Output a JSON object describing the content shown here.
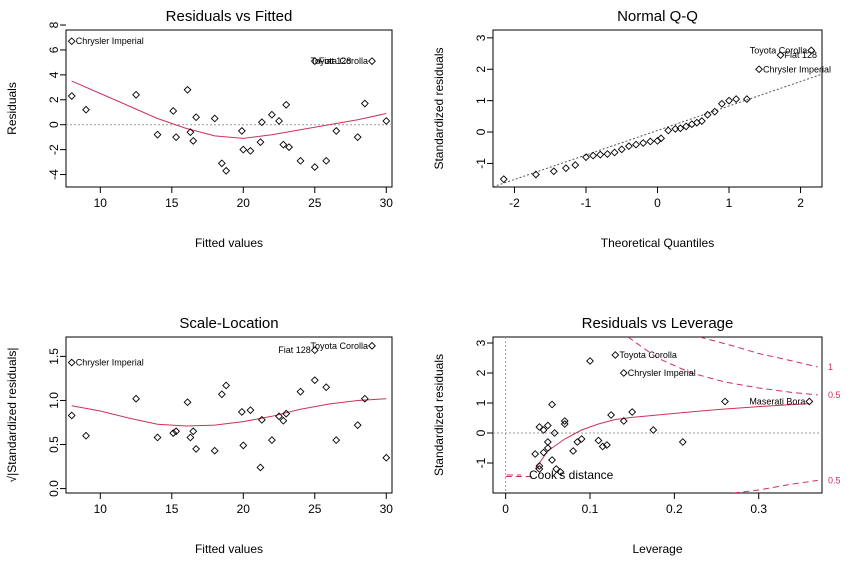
{
  "chart_data": [
    {
      "type": "scatter",
      "title": "Residuals vs Fitted",
      "xlabel": "Fitted values",
      "ylabel": "Residuals",
      "xlim": [
        7.6,
        30.4
      ],
      "ylim": [
        -5.0,
        7.6
      ],
      "xticks": [
        10,
        15,
        20,
        25,
        30
      ],
      "yticks": [
        -4,
        -2,
        0,
        2,
        4,
        6,
        8
      ],
      "reference_line": 0,
      "points": [
        [
          8,
          2.3
        ],
        [
          8,
          6.7
        ],
        [
          9,
          1.2
        ],
        [
          12.5,
          2.4
        ],
        [
          14,
          -0.8
        ],
        [
          15.1,
          1.1
        ],
        [
          15.3,
          -1.0
        ],
        [
          16.1,
          2.8
        ],
        [
          16.3,
          -0.6
        ],
        [
          16.5,
          -1.3
        ],
        [
          16.7,
          0.6
        ],
        [
          18,
          0.5
        ],
        [
          18.5,
          -3.1
        ],
        [
          18.8,
          -3.7
        ],
        [
          19.9,
          -0.5
        ],
        [
          20.0,
          -2.0
        ],
        [
          20.5,
          -2.1
        ],
        [
          21.2,
          -1.4
        ],
        [
          21.3,
          0.2
        ],
        [
          22,
          0.8
        ],
        [
          22.5,
          0.3
        ],
        [
          22.8,
          -1.6
        ],
        [
          23,
          1.6
        ],
        [
          23.2,
          -1.8
        ],
        [
          24,
          -2.9
        ],
        [
          25,
          5.1
        ],
        [
          25,
          -3.4
        ],
        [
          25.8,
          -2.9
        ],
        [
          26.5,
          -0.5
        ],
        [
          28.0,
          -1.0
        ],
        [
          28.5,
          1.7
        ],
        [
          29,
          5.1
        ],
        [
          30,
          0.3
        ]
      ],
      "smooth": [
        [
          8,
          3.5
        ],
        [
          10,
          2.5
        ],
        [
          12,
          1.5
        ],
        [
          14,
          0.5
        ],
        [
          16,
          -0.3
        ],
        [
          18,
          -0.9
        ],
        [
          20,
          -1.1
        ],
        [
          22,
          -0.8
        ],
        [
          24,
          -0.4
        ],
        [
          26,
          0.0
        ],
        [
          28,
          0.4
        ],
        [
          30,
          0.9
        ]
      ],
      "annotations": [
        {
          "label": "Chrysler Imperial",
          "x": 8,
          "y": 6.7,
          "pos": "right"
        },
        {
          "label": "Fiat 128",
          "x": 25,
          "y": 5.1,
          "pos": "right"
        },
        {
          "label": "Toyota Corolla",
          "x": 29,
          "y": 5.1,
          "pos": "left"
        }
      ]
    },
    {
      "type": "scatter",
      "title": "Normal Q-Q",
      "xlabel": "Theoretical Quantiles",
      "ylabel": "Standardized residuals",
      "xlim": [
        -2.3,
        2.3
      ],
      "ylim": [
        -1.75,
        3.25
      ],
      "xticks": [
        -2,
        -1,
        0,
        1,
        2
      ],
      "yticks": [
        -1,
        0,
        1,
        2,
        3
      ],
      "points": [
        [
          -2.15,
          -1.5
        ],
        [
          -1.7,
          -1.35
        ],
        [
          -1.45,
          -1.25
        ],
        [
          -1.28,
          -1.15
        ],
        [
          -1.15,
          -1.05
        ],
        [
          -1.0,
          -0.8
        ],
        [
          -0.9,
          -0.75
        ],
        [
          -0.8,
          -0.72
        ],
        [
          -0.7,
          -0.7
        ],
        [
          -0.6,
          -0.65
        ],
        [
          -0.5,
          -0.55
        ],
        [
          -0.4,
          -0.45
        ],
        [
          -0.3,
          -0.4
        ],
        [
          -0.2,
          -0.35
        ],
        [
          -0.1,
          -0.3
        ],
        [
          0.0,
          -0.28
        ],
        [
          0.05,
          -0.2
        ],
        [
          0.15,
          0.05
        ],
        [
          0.25,
          0.1
        ],
        [
          0.32,
          0.12
        ],
        [
          0.4,
          0.18
        ],
        [
          0.48,
          0.25
        ],
        [
          0.55,
          0.3
        ],
        [
          0.62,
          0.35
        ],
        [
          0.7,
          0.55
        ],
        [
          0.8,
          0.65
        ],
        [
          0.9,
          0.9
        ],
        [
          1.0,
          1.0
        ],
        [
          1.1,
          1.05
        ],
        [
          1.25,
          1.05
        ],
        [
          1.42,
          2.0
        ],
        [
          1.72,
          2.45
        ],
        [
          2.15,
          2.6
        ]
      ],
      "reference_line": {
        "slope": 0.78,
        "intercept": 0.05
      },
      "annotations": [
        {
          "label": "Toyota Corolla",
          "x": 2.15,
          "y": 2.6,
          "pos": "left"
        },
        {
          "label": "Fiat 128",
          "x": 1.72,
          "y": 2.45,
          "pos": "right"
        },
        {
          "label": "Chrysler Imperial",
          "x": 1.42,
          "y": 2.0,
          "pos": "right"
        }
      ]
    },
    {
      "type": "scatter",
      "title": "Scale-Location",
      "xlabel": "Fitted values",
      "ylabel": "√|Standardized residuals|",
      "xlim": [
        7.6,
        30.4
      ],
      "ylim": [
        -0.05,
        1.72
      ],
      "xticks": [
        10,
        15,
        20,
        25,
        30
      ],
      "yticks": [
        0.0,
        0.5,
        1.0,
        1.5
      ],
      "points": [
        [
          8,
          1.43
        ],
        [
          8,
          0.83
        ],
        [
          9,
          0.6
        ],
        [
          12.5,
          1.02
        ],
        [
          14,
          0.58
        ],
        [
          15.1,
          0.63
        ],
        [
          15.3,
          0.65
        ],
        [
          16.1,
          0.98
        ],
        [
          16.3,
          0.58
        ],
        [
          16.5,
          0.65
        ],
        [
          16.7,
          0.45
        ],
        [
          18,
          0.43
        ],
        [
          18.5,
          1.07
        ],
        [
          18.8,
          1.17
        ],
        [
          19.9,
          0.87
        ],
        [
          20.0,
          0.49
        ],
        [
          20.5,
          0.89
        ],
        [
          21.2,
          0.24
        ],
        [
          21.3,
          0.78
        ],
        [
          22,
          0.55
        ],
        [
          22.5,
          0.82
        ],
        [
          22.8,
          0.77
        ],
        [
          23,
          0.85
        ],
        [
          24,
          1.1
        ],
        [
          25,
          1.23
        ],
        [
          25,
          1.57
        ],
        [
          25.8,
          1.15
        ],
        [
          26.5,
          0.55
        ],
        [
          28.0,
          0.72
        ],
        [
          28.5,
          1.02
        ],
        [
          29,
          1.62
        ],
        [
          30,
          0.35
        ]
      ],
      "smooth": [
        [
          8,
          0.94
        ],
        [
          10,
          0.88
        ],
        [
          12,
          0.8
        ],
        [
          14,
          0.73
        ],
        [
          16,
          0.71
        ],
        [
          18,
          0.72
        ],
        [
          20,
          0.76
        ],
        [
          22,
          0.82
        ],
        [
          24,
          0.9
        ],
        [
          26,
          0.96
        ],
        [
          28,
          1.0
        ],
        [
          30,
          1.02
        ]
      ],
      "annotations": [
        {
          "label": "Chrysler Imperial",
          "x": 8,
          "y": 1.43,
          "pos": "right"
        },
        {
          "label": "Toyota Corolla",
          "x": 29,
          "y": 1.62,
          "pos": "left"
        },
        {
          "label": "Fiat 128",
          "x": 25,
          "y": 1.57,
          "pos": "left"
        }
      ]
    },
    {
      "type": "scatter",
      "title": "Residuals vs Leverage",
      "xlabel": "Leverage",
      "ylabel": "Standardized residuals",
      "xlim": [
        -0.015,
        0.375
      ],
      "ylim": [
        -2.0,
        3.2
      ],
      "xticks": [
        0.0,
        0.1,
        0.2,
        0.3
      ],
      "yticks": [
        -1,
        0,
        1,
        2,
        3
      ],
      "reference_line": 0,
      "points": [
        [
          0.035,
          -0.7
        ],
        [
          0.04,
          0.2
        ],
        [
          0.04,
          -1.1
        ],
        [
          0.04,
          -1.2
        ],
        [
          0.045,
          -0.65
        ],
        [
          0.045,
          0.1
        ],
        [
          0.05,
          0.25
        ],
        [
          0.05,
          -0.3
        ],
        [
          0.05,
          -0.5
        ],
        [
          0.055,
          0.95
        ],
        [
          0.055,
          -0.9
        ],
        [
          0.058,
          0.0
        ],
        [
          0.06,
          -1.2
        ],
        [
          0.065,
          -1.3
        ],
        [
          0.07,
          0.4
        ],
        [
          0.07,
          0.3
        ],
        [
          0.08,
          -0.6
        ],
        [
          0.085,
          -0.3
        ],
        [
          0.09,
          -0.2
        ],
        [
          0.1,
          2.4
        ],
        [
          0.11,
          -0.25
        ],
        [
          0.115,
          -0.45
        ],
        [
          0.12,
          -0.4
        ],
        [
          0.125,
          0.6
        ],
        [
          0.13,
          2.6
        ],
        [
          0.14,
          2.0
        ],
        [
          0.14,
          0.4
        ],
        [
          0.15,
          0.7
        ],
        [
          0.175,
          0.1
        ],
        [
          0.21,
          -0.3
        ],
        [
          0.26,
          1.05
        ],
        [
          0.36,
          1.05
        ]
      ],
      "smooth": [
        [
          0.035,
          -1.2
        ],
        [
          0.05,
          -0.6
        ],
        [
          0.07,
          -0.2
        ],
        [
          0.09,
          0.1
        ],
        [
          0.11,
          0.3
        ],
        [
          0.13,
          0.45
        ],
        [
          0.15,
          0.52
        ],
        [
          0.18,
          0.6
        ],
        [
          0.21,
          0.68
        ],
        [
          0.25,
          0.78
        ],
        [
          0.3,
          0.88
        ],
        [
          0.36,
          0.98
        ]
      ],
      "cooks_distance": [
        {
          "label": "1",
          "points": [
            [
              0.23,
              3.2
            ],
            [
              0.27,
              2.9
            ],
            [
              0.3,
              2.65
            ],
            [
              0.34,
              2.4
            ],
            [
              0.37,
              2.2
            ]
          ]
        },
        {
          "label": "0.5",
          "points": [
            [
              0.145,
              3.2
            ],
            [
              0.18,
              2.5
            ],
            [
              0.22,
              2.0
            ],
            [
              0.26,
              1.7
            ],
            [
              0.3,
              1.5
            ],
            [
              0.34,
              1.35
            ],
            [
              0.37,
              1.27
            ]
          ]
        },
        {
          "label": "0.5",
          "points": [
            [
              0.27,
              -2.0
            ],
            [
              0.3,
              -1.9
            ],
            [
              0.34,
              -1.7
            ],
            [
              0.37,
              -1.58
            ]
          ]
        }
      ],
      "cooks_baseline": [
        [
          0.0,
          -1.45
        ],
        [
          0.035,
          -1.45
        ]
      ],
      "annotations": [
        {
          "label": "Toyota Corolla",
          "x": 0.13,
          "y": 2.6,
          "pos": "right"
        },
        {
          "label": "Chrysler Imperial",
          "x": 0.14,
          "y": 2.0,
          "pos": "right"
        },
        {
          "label": "Maserati Bora",
          "x": 0.36,
          "y": 1.05,
          "pos": "left"
        }
      ],
      "legend": "Cook's distance"
    }
  ]
}
